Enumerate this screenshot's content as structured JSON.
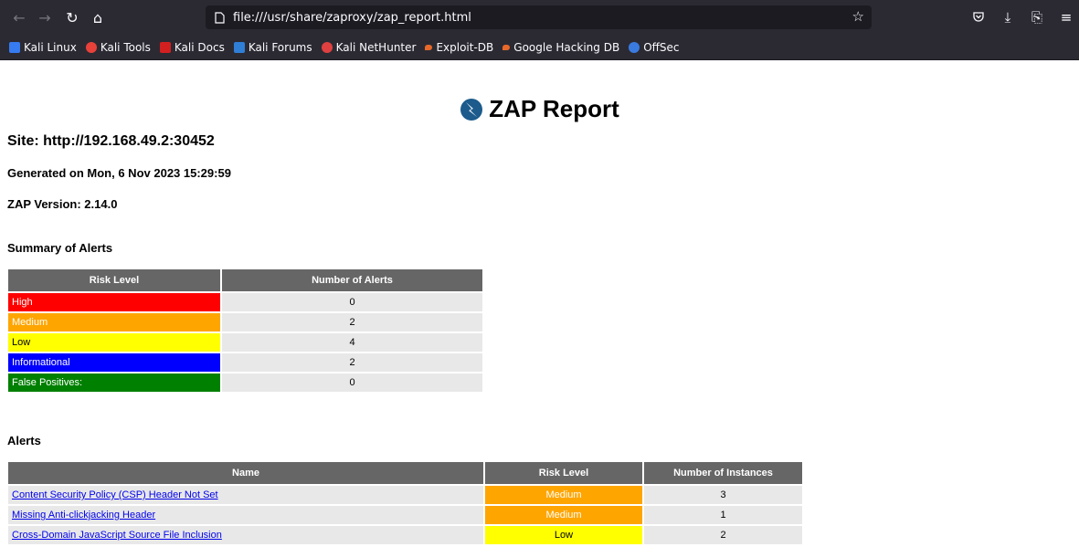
{
  "browser": {
    "url": "file:///usr/share/zaproxy/zap_report.html",
    "bookmarks": [
      {
        "label": "Kali Linux",
        "color": "#367bf0"
      },
      {
        "label": "Kali Tools",
        "color": "#e8413a"
      },
      {
        "label": "Kali Docs",
        "color": "#d21f1f"
      },
      {
        "label": "Kali Forums",
        "color": "#2f7fd6"
      },
      {
        "label": "Kali NetHunter",
        "color": "#e04040"
      },
      {
        "label": "Exploit-DB",
        "color": "#e8682a"
      },
      {
        "label": "Google Hacking DB",
        "color": "#e8682a"
      },
      {
        "label": "OffSec",
        "color": "#3a7be0"
      }
    ]
  },
  "report": {
    "title": "ZAP Report",
    "site": "Site: http://192.168.49.2:30452",
    "generated": "Generated on Mon, 6 Nov 2023 15:29:59",
    "version": "ZAP Version: 2.14.0",
    "summary_heading": "Summary of Alerts",
    "alerts_heading": "Alerts"
  },
  "summary": {
    "headers": [
      "Risk Level",
      "Number of Alerts"
    ],
    "rows": [
      {
        "level": "High",
        "count": "0"
      },
      {
        "level": "Medium",
        "count": "2"
      },
      {
        "level": "Low",
        "count": "4"
      },
      {
        "level": "Informational",
        "count": "2"
      },
      {
        "level": "False Positives:",
        "count": "0"
      }
    ]
  },
  "alerts": {
    "headers": [
      "Name",
      "Risk Level",
      "Number of Instances"
    ],
    "rows": [
      {
        "name": "Content Security Policy (CSP) Header Not Set",
        "risk": "Medium",
        "instances": "3"
      },
      {
        "name": "Missing Anti-clickjacking Header",
        "risk": "Medium",
        "instances": "1"
      },
      {
        "name": "Cross-Domain JavaScript Source File Inclusion",
        "risk": "Low",
        "instances": "2"
      }
    ]
  },
  "colors": {
    "high": "#ff0000",
    "medium": "#ffa500",
    "low": "#ffff00",
    "informational": "#0000ff",
    "false_positive": "#008000",
    "header": "#666666"
  }
}
